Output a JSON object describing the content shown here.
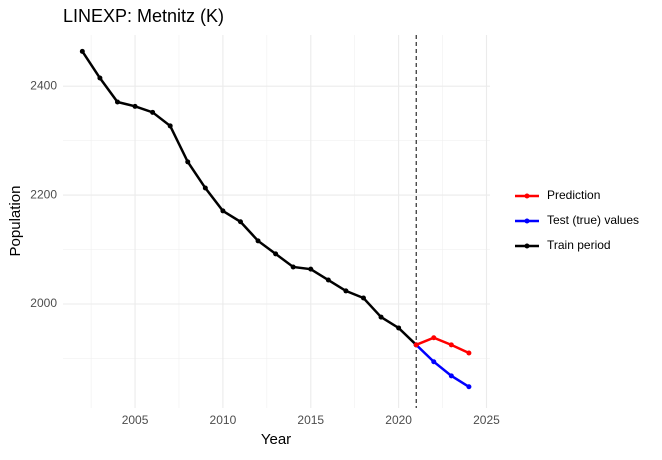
{
  "chart_data": {
    "type": "line",
    "title": "LINEXP: Metnitz (K)",
    "x_label": "Year",
    "y_label": "Population",
    "xlim": [
      2000.9,
      2025.2
    ],
    "xticks": [
      2005,
      2010,
      2015,
      2020,
      2025
    ],
    "ylim": [
      1809,
      2494
    ],
    "yticks": [
      2000,
      2200,
      2400
    ],
    "grid": true,
    "legend": "right",
    "vline": 2021,
    "series": [
      {
        "name": "Prediction",
        "color": "#ff0000",
        "x": [
          2021,
          2022,
          2023,
          2024
        ],
        "values": [
          1925,
          1938,
          1925,
          1910
        ]
      },
      {
        "name": "Test (true) values",
        "color": "#0000ff",
        "x": [
          2021,
          2022,
          2023,
          2024
        ],
        "values": [
          1925,
          1894,
          1868,
          1848
        ]
      },
      {
        "name": "Train period",
        "color": "#000000",
        "x": [
          2002,
          2003,
          2004,
          2005,
          2006,
          2007,
          2008,
          2009,
          2010,
          2011,
          2012,
          2013,
          2014,
          2015,
          2016,
          2017,
          2018,
          2019,
          2020,
          2021
        ],
        "values": [
          2464,
          2415,
          2371,
          2363,
          2352,
          2327,
          2261,
          2213,
          2171,
          2151,
          2116,
          2092,
          2068,
          2064,
          2044,
          2024,
          2011,
          1976,
          1956,
          1925
        ]
      }
    ]
  }
}
